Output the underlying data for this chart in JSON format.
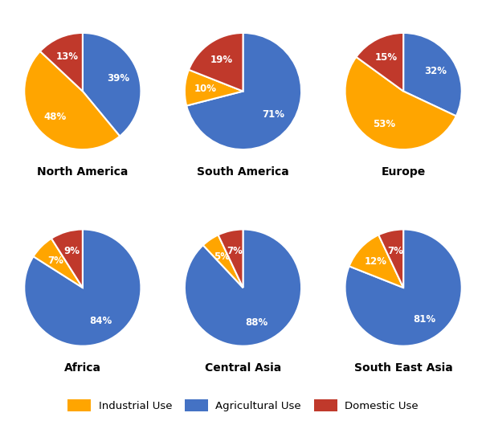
{
  "regions": [
    "North America",
    "South America",
    "Europe",
    "Africa",
    "Central Asia",
    "South East Asia"
  ],
  "data": {
    "North America": [
      39,
      48,
      13
    ],
    "South America": [
      71,
      10,
      19
    ],
    "Europe": [
      32,
      53,
      15
    ],
    "Africa": [
      84,
      7,
      9
    ],
    "Central Asia": [
      88,
      5,
      7
    ],
    "South East Asia": [
      81,
      12,
      7
    ]
  },
  "colors": [
    "#4472C4",
    "#FFA500",
    "#C0392B"
  ],
  "label_order": [
    "Agricultural",
    "Industrial",
    "Domestic"
  ],
  "legend_labels": [
    "Industrial Use",
    "Agricultural Use",
    "Domestic Use"
  ],
  "legend_colors": [
    "#FFA500",
    "#4472C4",
    "#C0392B"
  ],
  "start_angles": {
    "North America": 90,
    "South America": 90,
    "Europe": 90,
    "Africa": 90,
    "Central Asia": 90,
    "South East Asia": 90
  },
  "background_color": "#FFFFFF",
  "text_color": "#000000",
  "label_color": "#FFFFFF",
  "title_fontsize": 10,
  "pct_fontsize": 8.5,
  "layout": {
    "rows": 2,
    "cols": 3
  }
}
